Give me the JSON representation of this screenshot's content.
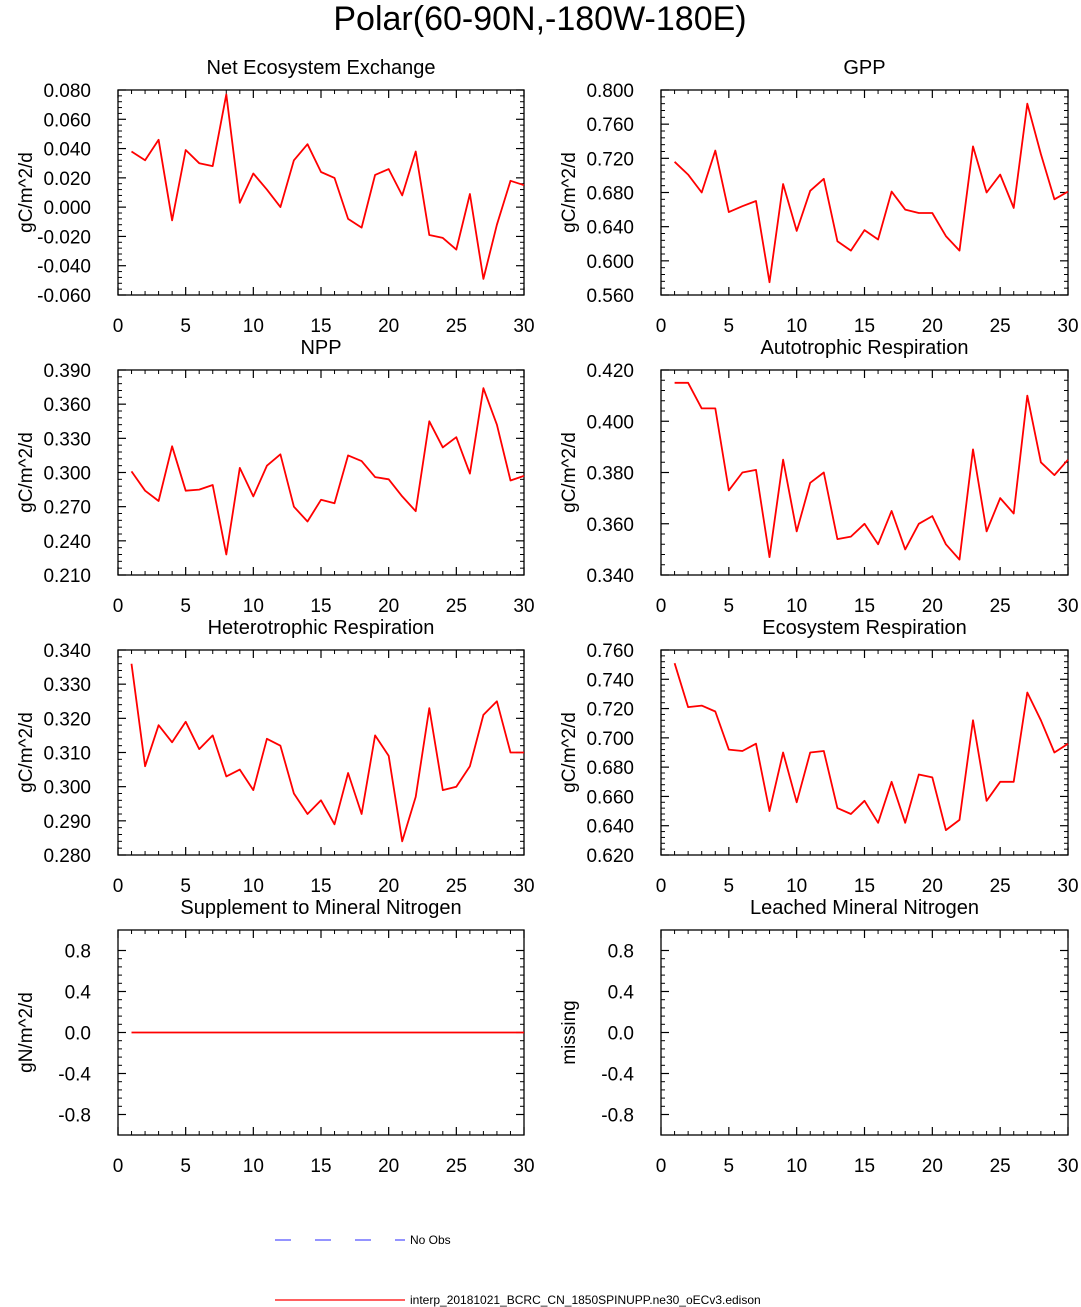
{
  "figure_title": "Polar(60-90N,-180W-180E)",
  "colors": {
    "model_line": "#ff0000",
    "obs_line": "#5555ff",
    "axis": "#000000"
  },
  "legend": [
    {
      "label": "No Obs",
      "style": "dashed",
      "color": "#5555ff"
    },
    {
      "label": "interp_20181021_BCRC_CN_1850SPINUPP.ne30_oECv3.edison",
      "style": "solid",
      "color": "#ff0000"
    }
  ],
  "chart_data": [
    {
      "type": "line",
      "title": "Net Ecosystem Exchange",
      "ylabel": "gC/m^2/d",
      "xlim": [
        0,
        30
      ],
      "xticks": [
        0,
        5,
        10,
        15,
        20,
        25,
        30
      ],
      "ylim": [
        -0.06,
        0.08
      ],
      "yticks": [
        -0.06,
        -0.04,
        -0.02,
        0.0,
        0.02,
        0.04,
        0.06,
        0.08
      ],
      "ytick_labels": [
        "-0.060",
        "-0.040",
        "-0.020",
        "0.000",
        "0.020",
        "0.040",
        "0.060",
        "0.080"
      ],
      "x": [
        1,
        2,
        3,
        4,
        5,
        6,
        7,
        8,
        9,
        10,
        11,
        12,
        13,
        14,
        15,
        16,
        17,
        18,
        19,
        20,
        21,
        22,
        23,
        24,
        25,
        26,
        27,
        28,
        29,
        30
      ],
      "values": [
        0.038,
        0.032,
        0.046,
        -0.009,
        0.039,
        0.03,
        0.028,
        0.077,
        0.003,
        0.023,
        0.012,
        0.0,
        0.032,
        0.043,
        0.024,
        0.02,
        -0.008,
        -0.014,
        0.022,
        0.026,
        0.008,
        0.038,
        -0.019,
        -0.021,
        -0.029,
        0.009,
        -0.049,
        -0.012,
        0.018,
        0.015
      ]
    },
    {
      "type": "line",
      "title": "GPP",
      "ylabel": "gC/m^2/d",
      "xlim": [
        0,
        30
      ],
      "xticks": [
        0,
        5,
        10,
        15,
        20,
        25,
        30
      ],
      "ylim": [
        0.56,
        0.8
      ],
      "yticks": [
        0.56,
        0.6,
        0.64,
        0.68,
        0.72,
        0.76,
        0.8
      ],
      "ytick_labels": [
        "0.560",
        "0.600",
        "0.640",
        "0.680",
        "0.720",
        "0.760",
        "0.800"
      ],
      "x": [
        1,
        2,
        3,
        4,
        5,
        6,
        7,
        8,
        9,
        10,
        11,
        12,
        13,
        14,
        15,
        16,
        17,
        18,
        19,
        20,
        21,
        22,
        23,
        24,
        25,
        26,
        27,
        28,
        29,
        30
      ],
      "values": [
        0.716,
        0.701,
        0.68,
        0.729,
        0.657,
        0.664,
        0.67,
        0.575,
        0.69,
        0.635,
        0.682,
        0.696,
        0.623,
        0.612,
        0.636,
        0.625,
        0.681,
        0.66,
        0.656,
        0.656,
        0.629,
        0.612,
        0.734,
        0.68,
        0.701,
        0.662,
        0.784,
        0.725,
        0.672,
        0.681
      ]
    },
    {
      "type": "line",
      "title": "NPP",
      "ylabel": "gC/m^2/d",
      "xlim": [
        0,
        30
      ],
      "xticks": [
        0,
        5,
        10,
        15,
        20,
        25,
        30
      ],
      "ylim": [
        0.21,
        0.39
      ],
      "yticks": [
        0.21,
        0.24,
        0.27,
        0.3,
        0.33,
        0.36,
        0.39
      ],
      "ytick_labels": [
        "0.210",
        "0.240",
        "0.270",
        "0.300",
        "0.330",
        "0.360",
        "0.390"
      ],
      "x": [
        1,
        2,
        3,
        4,
        5,
        6,
        7,
        8,
        9,
        10,
        11,
        12,
        13,
        14,
        15,
        16,
        17,
        18,
        19,
        20,
        21,
        22,
        23,
        24,
        25,
        26,
        27,
        28,
        29,
        30
      ],
      "values": [
        0.301,
        0.284,
        0.275,
        0.323,
        0.284,
        0.285,
        0.289,
        0.228,
        0.304,
        0.279,
        0.306,
        0.316,
        0.27,
        0.257,
        0.276,
        0.273,
        0.315,
        0.31,
        0.296,
        0.294,
        0.279,
        0.266,
        0.345,
        0.322,
        0.331,
        0.299,
        0.374,
        0.342,
        0.293,
        0.297
      ]
    },
    {
      "type": "line",
      "title": "Autotrophic Respiration",
      "ylabel": "gC/m^2/d",
      "xlim": [
        0,
        30
      ],
      "xticks": [
        0,
        5,
        10,
        15,
        20,
        25,
        30
      ],
      "ylim": [
        0.34,
        0.42
      ],
      "yticks": [
        0.34,
        0.36,
        0.38,
        0.4,
        0.42
      ],
      "ytick_labels": [
        "0.340",
        "0.360",
        "0.380",
        "0.400",
        "0.420"
      ],
      "x": [
        1,
        2,
        3,
        4,
        5,
        6,
        7,
        8,
        9,
        10,
        11,
        12,
        13,
        14,
        15,
        16,
        17,
        18,
        19,
        20,
        21,
        22,
        23,
        24,
        25,
        26,
        27,
        28,
        29,
        30
      ],
      "values": [
        0.415,
        0.415,
        0.405,
        0.405,
        0.373,
        0.38,
        0.381,
        0.347,
        0.385,
        0.357,
        0.376,
        0.38,
        0.354,
        0.355,
        0.36,
        0.352,
        0.365,
        0.35,
        0.36,
        0.363,
        0.352,
        0.346,
        0.389,
        0.357,
        0.37,
        0.364,
        0.41,
        0.384,
        0.379,
        0.385
      ]
    },
    {
      "type": "line",
      "title": "Heterotrophic Respiration",
      "ylabel": "gC/m^2/d",
      "xlim": [
        0,
        30
      ],
      "xticks": [
        0,
        5,
        10,
        15,
        20,
        25,
        30
      ],
      "ylim": [
        0.28,
        0.34
      ],
      "yticks": [
        0.28,
        0.29,
        0.3,
        0.31,
        0.32,
        0.33,
        0.34
      ],
      "ytick_labels": [
        "0.280",
        "0.290",
        "0.300",
        "0.310",
        "0.320",
        "0.330",
        "0.340"
      ],
      "x": [
        1,
        2,
        3,
        4,
        5,
        6,
        7,
        8,
        9,
        10,
        11,
        12,
        13,
        14,
        15,
        16,
        17,
        18,
        19,
        20,
        21,
        22,
        23,
        24,
        25,
        26,
        27,
        28,
        29,
        30
      ],
      "values": [
        0.336,
        0.306,
        0.318,
        0.313,
        0.319,
        0.311,
        0.315,
        0.303,
        0.305,
        0.299,
        0.314,
        0.312,
        0.298,
        0.292,
        0.296,
        0.289,
        0.304,
        0.292,
        0.315,
        0.309,
        0.284,
        0.297,
        0.323,
        0.299,
        0.3,
        0.306,
        0.321,
        0.325,
        0.31,
        0.31
      ]
    },
    {
      "type": "line",
      "title": "Ecosystem Respiration",
      "ylabel": "gC/m^2/d",
      "xlim": [
        0,
        30
      ],
      "xticks": [
        0,
        5,
        10,
        15,
        20,
        25,
        30
      ],
      "ylim": [
        0.62,
        0.76
      ],
      "yticks": [
        0.62,
        0.64,
        0.66,
        0.68,
        0.7,
        0.72,
        0.74,
        0.76
      ],
      "ytick_labels": [
        "0.620",
        "0.640",
        "0.660",
        "0.680",
        "0.700",
        "0.720",
        "0.740",
        "0.760"
      ],
      "x": [
        1,
        2,
        3,
        4,
        5,
        6,
        7,
        8,
        9,
        10,
        11,
        12,
        13,
        14,
        15,
        16,
        17,
        18,
        19,
        20,
        21,
        22,
        23,
        24,
        25,
        26,
        27,
        28,
        29,
        30
      ],
      "values": [
        0.751,
        0.721,
        0.722,
        0.718,
        0.692,
        0.691,
        0.696,
        0.65,
        0.69,
        0.656,
        0.69,
        0.691,
        0.652,
        0.648,
        0.657,
        0.642,
        0.67,
        0.642,
        0.675,
        0.673,
        0.637,
        0.644,
        0.712,
        0.657,
        0.67,
        0.67,
        0.731,
        0.712,
        0.69,
        0.696
      ]
    },
    {
      "type": "line",
      "title": "Supplement to Mineral Nitrogen",
      "ylabel": "gN/m^2/d",
      "xlim": [
        0,
        30
      ],
      "xticks": [
        0,
        5,
        10,
        15,
        20,
        25,
        30
      ],
      "ylim": [
        -1.0,
        1.0
      ],
      "yticks": [
        -0.8,
        -0.4,
        0.0,
        0.4,
        0.8
      ],
      "ytick_labels": [
        "-0.8",
        "-0.4",
        "0.0",
        "0.4",
        "0.8"
      ],
      "x": [
        1,
        2,
        3,
        4,
        5,
        6,
        7,
        8,
        9,
        10,
        11,
        12,
        13,
        14,
        15,
        16,
        17,
        18,
        19,
        20,
        21,
        22,
        23,
        24,
        25,
        26,
        27,
        28,
        29,
        30
      ],
      "values": [
        0,
        0,
        0,
        0,
        0,
        0,
        0,
        0,
        0,
        0,
        0,
        0,
        0,
        0,
        0,
        0,
        0,
        0,
        0,
        0,
        0,
        0,
        0,
        0,
        0,
        0,
        0,
        0,
        0,
        0
      ]
    },
    {
      "type": "line",
      "title": "Leached Mineral Nitrogen",
      "ylabel": "missing",
      "xlim": [
        0,
        30
      ],
      "xticks": [
        0,
        5,
        10,
        15,
        20,
        25,
        30
      ],
      "ylim": [
        -1.0,
        1.0
      ],
      "yticks": [
        -0.8,
        -0.4,
        0.0,
        0.4,
        0.8
      ],
      "ytick_labels": [
        "-0.8",
        "-0.4",
        "0.0",
        "0.4",
        "0.8"
      ],
      "x": [],
      "values": []
    }
  ]
}
